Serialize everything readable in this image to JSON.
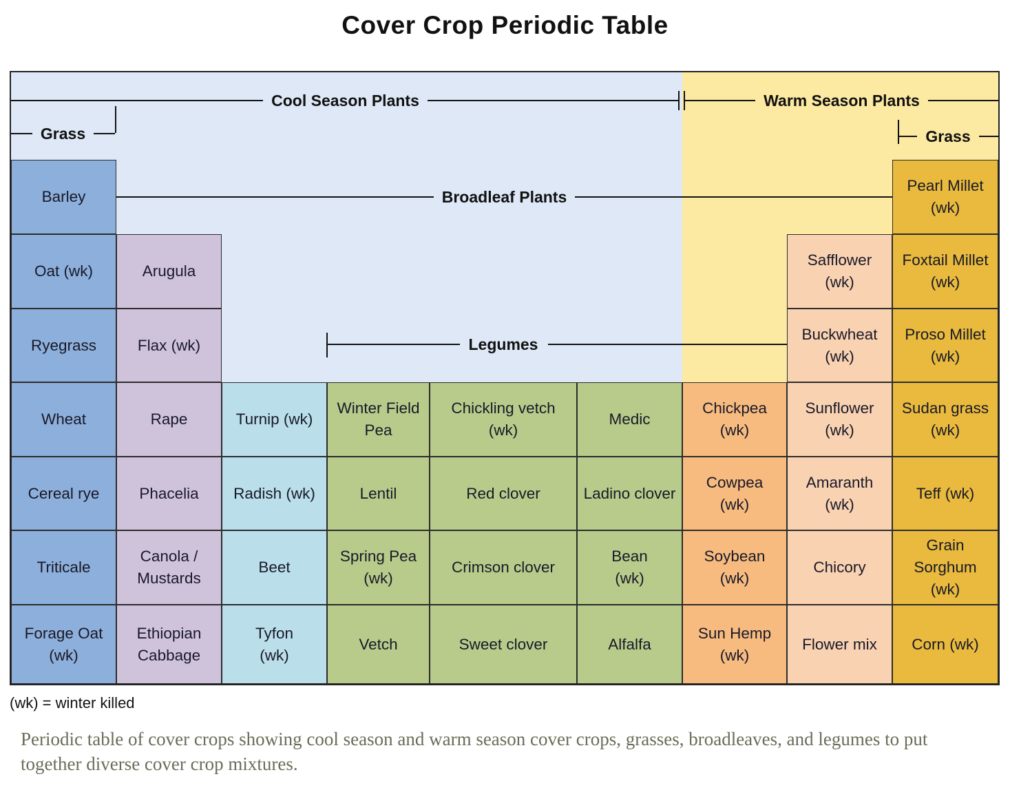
{
  "title": "Cover Crop Periodic Table",
  "note": "(wk) = winter killed",
  "caption": "Periodic table of cover crops showing cool season and warm season cover crops, grasses, broadleaves, and legumes to put together diverse cover crop mixtures.",
  "labels": {
    "cool_season": "Cool Season Plants",
    "warm_season": "Warm Season Plants",
    "grass_left": "Grass",
    "grass_right": "Grass",
    "broadleaf": "Broadleaf Plants",
    "legumes": "Legumes"
  },
  "colors": {
    "cool_bg": "#dee8f6",
    "warm_bg": "#fce9a2",
    "cool_grass": "#8dafdb",
    "cool_broadleaf": "#cfc3dc",
    "cool_root": "#badfeb",
    "cool_legume": "#b8cb8b",
    "warm_legume": "#f7bb80",
    "warm_broadleaf": "#f9d2b2",
    "warm_grass": "#e9ba3d"
  },
  "cells": [
    {
      "label": "Barley",
      "row": 1,
      "col": 1,
      "cat": "cool_grass"
    },
    {
      "label": "Pearl Millet\n(wk)",
      "row": 1,
      "col": 9,
      "cat": "warm_grass"
    },
    {
      "label": "Oat (wk)",
      "row": 2,
      "col": 1,
      "cat": "cool_grass"
    },
    {
      "label": "Arugula",
      "row": 2,
      "col": 2,
      "cat": "cool_broadleaf"
    },
    {
      "label": "Safflower\n(wk)",
      "row": 2,
      "col": 8,
      "cat": "warm_broadleaf"
    },
    {
      "label": "Foxtail Millet\n(wk)",
      "row": 2,
      "col": 9,
      "cat": "warm_grass"
    },
    {
      "label": "Ryegrass",
      "row": 3,
      "col": 1,
      "cat": "cool_grass"
    },
    {
      "label": "Flax (wk)",
      "row": 3,
      "col": 2,
      "cat": "cool_broadleaf"
    },
    {
      "label": "Buckwheat\n(wk)",
      "row": 3,
      "col": 8,
      "cat": "warm_broadleaf"
    },
    {
      "label": "Proso Millet\n(wk)",
      "row": 3,
      "col": 9,
      "cat": "warm_grass"
    },
    {
      "label": "Wheat",
      "row": 4,
      "col": 1,
      "cat": "cool_grass"
    },
    {
      "label": "Rape",
      "row": 4,
      "col": 2,
      "cat": "cool_broadleaf"
    },
    {
      "label": "Turnip (wk)",
      "row": 4,
      "col": 3,
      "cat": "cool_root"
    },
    {
      "label": "Winter Field\nPea",
      "row": 4,
      "col": 4,
      "cat": "cool_legume"
    },
    {
      "label": "Chickling vetch\n(wk)",
      "row": 4,
      "col": 5,
      "cat": "cool_legume"
    },
    {
      "label": "Medic",
      "row": 4,
      "col": 6,
      "cat": "cool_legume"
    },
    {
      "label": "Chickpea\n(wk)",
      "row": 4,
      "col": 7,
      "cat": "warm_legume"
    },
    {
      "label": "Sunflower\n(wk)",
      "row": 4,
      "col": 8,
      "cat": "warm_broadleaf"
    },
    {
      "label": "Sudan grass\n(wk)",
      "row": 4,
      "col": 9,
      "cat": "warm_grass"
    },
    {
      "label": "Cereal rye",
      "row": 5,
      "col": 1,
      "cat": "cool_grass"
    },
    {
      "label": "Phacelia",
      "row": 5,
      "col": 2,
      "cat": "cool_broadleaf"
    },
    {
      "label": "Radish (wk)",
      "row": 5,
      "col": 3,
      "cat": "cool_root"
    },
    {
      "label": "Lentil",
      "row": 5,
      "col": 4,
      "cat": "cool_legume"
    },
    {
      "label": "Red clover",
      "row": 5,
      "col": 5,
      "cat": "cool_legume"
    },
    {
      "label": "Ladino clover",
      "row": 5,
      "col": 6,
      "cat": "cool_legume"
    },
    {
      "label": "Cowpea\n(wk)",
      "row": 5,
      "col": 7,
      "cat": "warm_legume"
    },
    {
      "label": "Amaranth\n(wk)",
      "row": 5,
      "col": 8,
      "cat": "warm_broadleaf"
    },
    {
      "label": "Teff (wk)",
      "row": 5,
      "col": 9,
      "cat": "warm_grass"
    },
    {
      "label": "Triticale",
      "row": 6,
      "col": 1,
      "cat": "cool_grass"
    },
    {
      "label": "Canola /\nMustards",
      "row": 6,
      "col": 2,
      "cat": "cool_broadleaf"
    },
    {
      "label": "Beet",
      "row": 6,
      "col": 3,
      "cat": "cool_root"
    },
    {
      "label": "Spring Pea\n(wk)",
      "row": 6,
      "col": 4,
      "cat": "cool_legume"
    },
    {
      "label": "Crimson clover",
      "row": 6,
      "col": 5,
      "cat": "cool_legume"
    },
    {
      "label": "Bean\n(wk)",
      "row": 6,
      "col": 6,
      "cat": "cool_legume"
    },
    {
      "label": "Soybean\n(wk)",
      "row": 6,
      "col": 7,
      "cat": "warm_legume"
    },
    {
      "label": "Chicory",
      "row": 6,
      "col": 8,
      "cat": "warm_broadleaf"
    },
    {
      "label": "Grain\nSorghum\n(wk)",
      "row": 6,
      "col": 9,
      "cat": "warm_grass"
    },
    {
      "label": "Forage Oat\n(wk)",
      "row": 7,
      "col": 1,
      "cat": "cool_grass"
    },
    {
      "label": "Ethiopian\nCabbage",
      "row": 7,
      "col": 2,
      "cat": "cool_broadleaf"
    },
    {
      "label": "Tyfon\n(wk)",
      "row": 7,
      "col": 3,
      "cat": "cool_root"
    },
    {
      "label": "Vetch",
      "row": 7,
      "col": 4,
      "cat": "cool_legume"
    },
    {
      "label": "Sweet clover",
      "row": 7,
      "col": 5,
      "cat": "cool_legume"
    },
    {
      "label": "Alfalfa",
      "row": 7,
      "col": 6,
      "cat": "cool_legume"
    },
    {
      "label": "Sun Hemp\n(wk)",
      "row": 7,
      "col": 7,
      "cat": "warm_legume"
    },
    {
      "label": "Flower mix",
      "row": 7,
      "col": 8,
      "cat": "warm_broadleaf"
    },
    {
      "label": "Corn (wk)",
      "row": 7,
      "col": 9,
      "cat": "warm_grass"
    }
  ]
}
